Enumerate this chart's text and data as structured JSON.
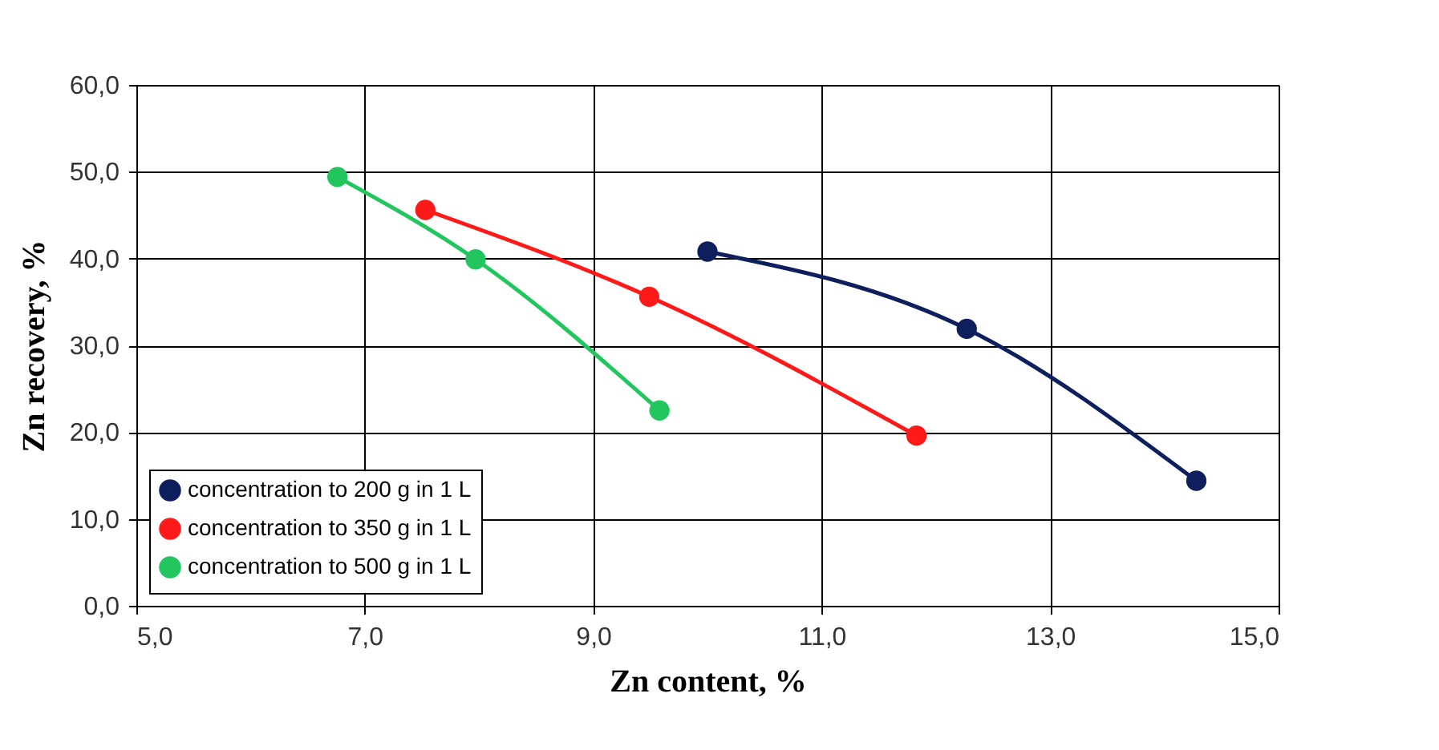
{
  "chart_data": {
    "type": "line",
    "xlabel": "Zn content, %",
    "ylabel": "Zn recovery, %",
    "series": [
      {
        "name": "concentration to 200 g in 1 L",
        "color": "#0d1f5c",
        "x": [
          10.0,
          12.27,
          14.28
        ],
        "values": [
          40.8,
          31.9,
          14.4
        ]
      },
      {
        "name": "concentration to 350 g in 1 L",
        "color": "#ff1a1a",
        "x": [
          7.53,
          9.49,
          11.83
        ],
        "values": [
          45.6,
          35.6,
          19.6
        ]
      },
      {
        "name": "concentration to 500 g in 1 L",
        "color": "#22c55e",
        "x": [
          6.76,
          7.97,
          9.58
        ],
        "values": [
          49.4,
          39.9,
          22.5
        ]
      }
    ],
    "xlim": [
      5,
      15
    ],
    "xticks": [
      {
        "value": 5,
        "label": "5,0"
      },
      {
        "value": 7,
        "label": "7,0"
      },
      {
        "value": 9,
        "label": "9,0"
      },
      {
        "value": 11,
        "label": "11,0"
      },
      {
        "value": 13,
        "label": "13,0"
      },
      {
        "value": 15,
        "label": "15,0"
      }
    ],
    "ylim": [
      0,
      60
    ],
    "yticks": [
      {
        "value": 0,
        "label": "0,0"
      },
      {
        "value": 10,
        "label": "10,0"
      },
      {
        "value": 20,
        "label": "20,0"
      },
      {
        "value": 30,
        "label": "30,0"
      },
      {
        "value": 40,
        "label": "40,0"
      },
      {
        "value": 50,
        "label": "50,0"
      },
      {
        "value": 60,
        "label": "60,0"
      }
    ],
    "grid": true,
    "legend": "bottom left",
    "marker": "circle",
    "line_style": "solid"
  }
}
